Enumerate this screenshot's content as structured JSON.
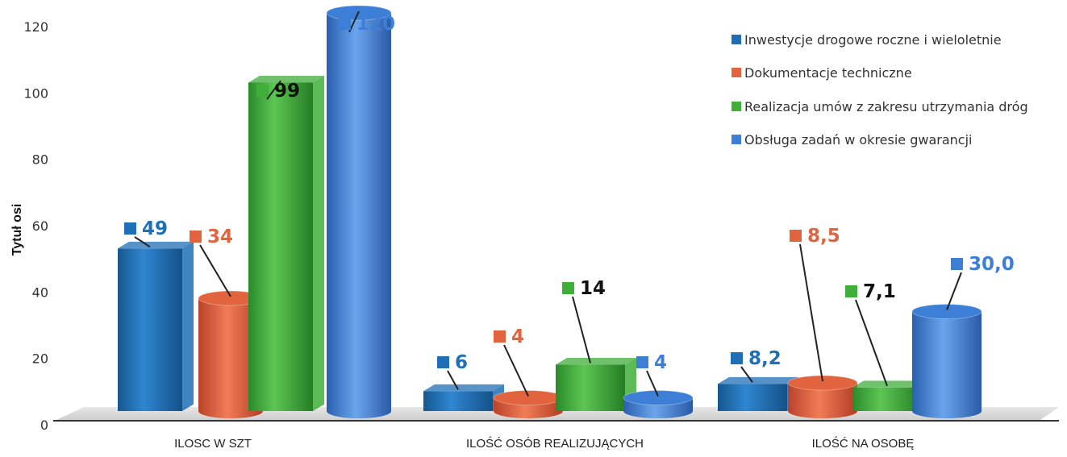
{
  "chart_data": {
    "type": "bar",
    "title": "",
    "ylabel": "Tytuł osi",
    "xlabel": "",
    "ylim": [
      0,
      120
    ],
    "yticks": [
      0,
      20,
      40,
      60,
      80,
      100,
      120
    ],
    "categories": [
      "ILOSC W SZT",
      "ILOŚĆ OSÓB REALIZUJĄCYCH",
      "ILOŚĆ NA OSOBĘ"
    ],
    "legend_position": "top-right",
    "grid": false,
    "series": [
      {
        "name": "Inwestycje drogowe roczne i wieloletnie",
        "color": "#1f6fb6",
        "values": [
          49,
          6,
          8.2
        ],
        "labels": [
          "49",
          "6",
          "8,2"
        ]
      },
      {
        "name": "Dokumentacje techniczne",
        "color": "#e2643f",
        "values": [
          34,
          4,
          8.5
        ],
        "labels": [
          "34",
          "4",
          "8,5"
        ]
      },
      {
        "name": "Realizacja umów z zakresu utrzymania dróg",
        "color": "#3fae3a",
        "values": [
          99,
          14,
          7.1
        ],
        "labels": [
          "99",
          "14",
          "7,1"
        ]
      },
      {
        "name": "Obsługa zadań w okresie gwarancji",
        "color": "#3d7fd6",
        "values": [
          120,
          4,
          30.0
        ],
        "labels": [
          "120",
          "4",
          "30,0"
        ]
      }
    ]
  }
}
